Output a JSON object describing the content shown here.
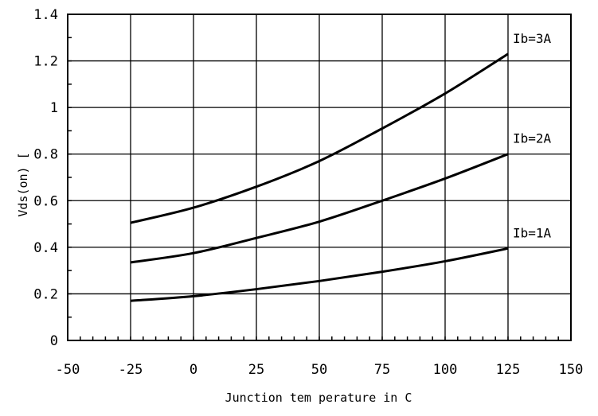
{
  "chart_data": {
    "type": "line",
    "title": "",
    "xlabel": "Junction tem perature in C",
    "ylabel": "Vds(on) [",
    "xlim": [
      -50,
      150
    ],
    "ylim": [
      0,
      1.4
    ],
    "x_ticks": [
      -50,
      -25,
      0,
      25,
      50,
      75,
      100,
      125,
      150
    ],
    "x_tick_labels": [
      "-50",
      "-25",
      "0",
      "25",
      "50",
      "75",
      "100",
      "125",
      "150"
    ],
    "y_ticks": [
      0,
      0.2,
      0.4,
      0.6,
      0.8,
      1,
      1.2,
      1.4
    ],
    "y_tick_labels": [
      "0",
      "0.2",
      "0.4",
      "0.6",
      "0.8",
      "1",
      "1.2",
      "1.4"
    ],
    "grid": true,
    "legend": "none",
    "x": [
      -25,
      0,
      25,
      50,
      75,
      100,
      125
    ],
    "series": [
      {
        "name": "Ib=1A",
        "values": [
          0.17,
          0.19,
          0.22,
          0.255,
          0.295,
          0.34,
          0.395
        ]
      },
      {
        "name": "Ib=2A",
        "values": [
          0.335,
          0.375,
          0.44,
          0.51,
          0.6,
          0.695,
          0.8
        ]
      },
      {
        "name": "Ib=3A",
        "values": [
          0.505,
          0.57,
          0.66,
          0.77,
          0.91,
          1.06,
          1.23
        ]
      }
    ],
    "colors": {
      "line": "#000000",
      "grid": "#000000",
      "background": "#ffffff"
    }
  }
}
